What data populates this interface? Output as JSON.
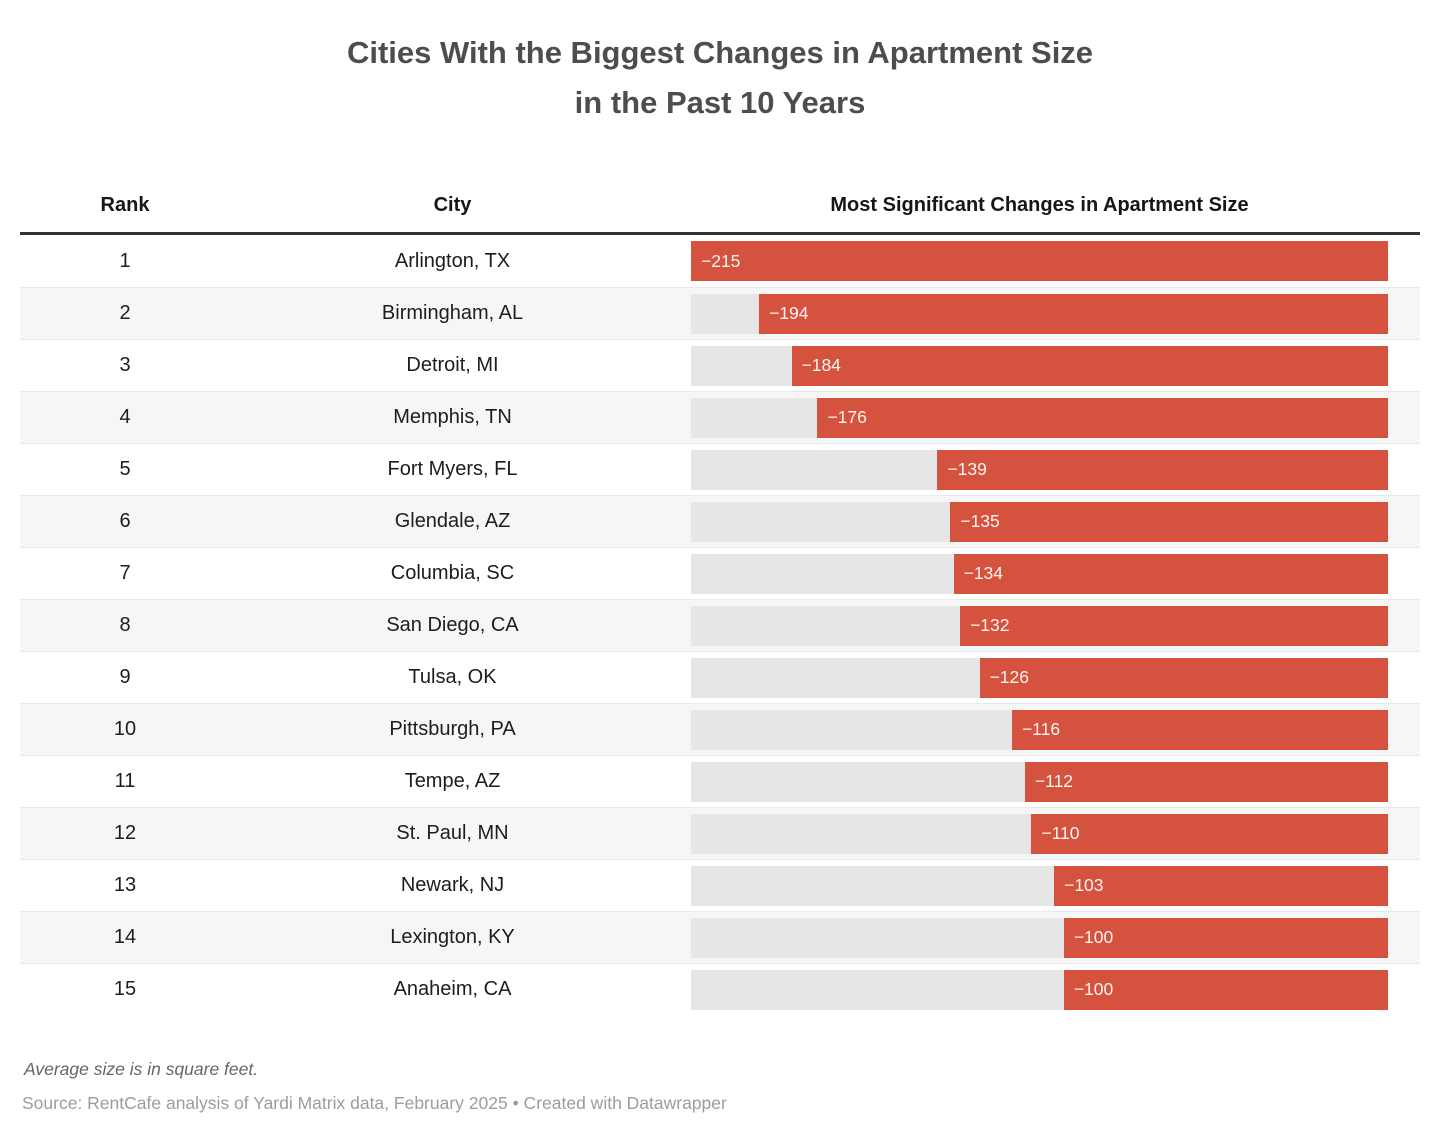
{
  "title": {
    "line1": "Cities With the Biggest Changes in Apartment Size",
    "line2": "in the Past 10 Years"
  },
  "table": {
    "columns": [
      "Rank",
      "City",
      "Most Significant Changes in Apartment Size"
    ],
    "rows": [
      {
        "rank": "1",
        "city": "Arlington, TX",
        "value": -215,
        "label": "−215"
      },
      {
        "rank": "2",
        "city": "Birmingham, AL",
        "value": -194,
        "label": "−194"
      },
      {
        "rank": "3",
        "city": "Detroit, MI",
        "value": -184,
        "label": "−184"
      },
      {
        "rank": "4",
        "city": "Memphis, TN",
        "value": -176,
        "label": "−176"
      },
      {
        "rank": "5",
        "city": "Fort Myers, FL",
        "value": -139,
        "label": "−139"
      },
      {
        "rank": "6",
        "city": "Glendale, AZ",
        "value": -135,
        "label": "−135"
      },
      {
        "rank": "7",
        "city": "Columbia, SC",
        "value": -134,
        "label": "−134"
      },
      {
        "rank": "8",
        "city": "San Diego, CA",
        "value": -132,
        "label": "−132"
      },
      {
        "rank": "9",
        "city": "Tulsa, OK",
        "value": -126,
        "label": "−126"
      },
      {
        "rank": "10",
        "city": "Pittsburgh, PA",
        "value": -116,
        "label": "−116"
      },
      {
        "rank": "11",
        "city": "Tempe, AZ",
        "value": -112,
        "label": "−112"
      },
      {
        "rank": "12",
        "city": "St. Paul, MN",
        "value": -110,
        "label": "−110"
      },
      {
        "rank": "13",
        "city": "Newark, NJ",
        "value": -103,
        "label": "−103"
      },
      {
        "rank": "14",
        "city": "Lexington, KY",
        "value": -100,
        "label": "−100"
      },
      {
        "rank": "15",
        "city": "Anaheim, CA",
        "value": -100,
        "label": "−100"
      }
    ]
  },
  "footnote": "Average size is in square feet.",
  "source": "Source: RentCafe analysis of Yardi Matrix data, February 2025 • Created with Datawrapper",
  "colors": {
    "bar": "#d5523e",
    "track": "#e6e6e6",
    "stripe": "#f6f6f6",
    "header_border": "#333333",
    "title_text": "#4d4d4d"
  },
  "chart_data": {
    "type": "bar",
    "orientation": "horizontal",
    "title": "Cities With the Biggest Changes in Apartment Size in the Past 10 Years",
    "categories": [
      "Arlington, TX",
      "Birmingham, AL",
      "Detroit, MI",
      "Memphis, TN",
      "Fort Myers, FL",
      "Glendale, AZ",
      "Columbia, SC",
      "San Diego, CA",
      "Tulsa, OK",
      "Pittsburgh, PA",
      "Tempe, AZ",
      "St. Paul, MN",
      "Newark, NJ",
      "Lexington, KY",
      "Anaheim, CA"
    ],
    "values": [
      -215,
      -194,
      -184,
      -176,
      -139,
      -135,
      -134,
      -132,
      -126,
      -116,
      -112,
      -110,
      -103,
      -100,
      -100
    ],
    "xlabel": "Most Significant Changes in Apartment Size",
    "ylabel": "City",
    "xlim": [
      -215,
      0
    ],
    "unit": "square feet",
    "grid": false,
    "legend": false
  }
}
